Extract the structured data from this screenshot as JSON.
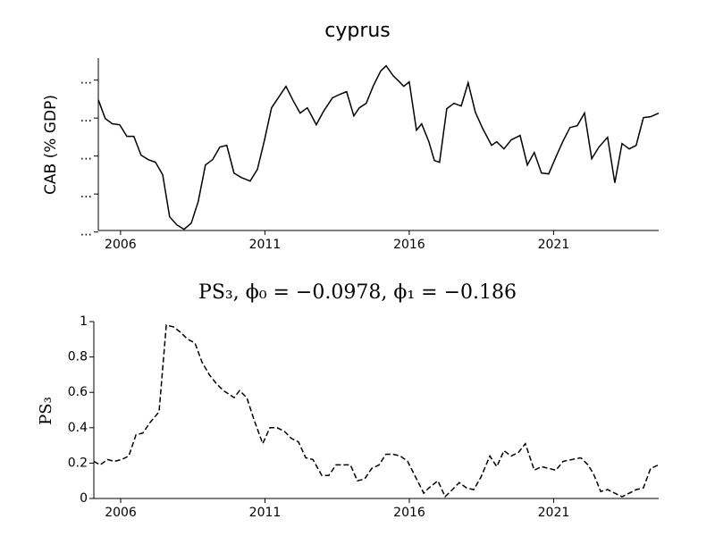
{
  "chart_data": [
    {
      "type": "line",
      "title": "cyprus",
      "ylabel": "CAB (% GDP)",
      "color": "#000000",
      "line_style": "solid",
      "xlim": [
        2005.23,
        2024.64
      ],
      "xticks": [
        2006,
        2011,
        2016,
        2021
      ],
      "ylim": [
        -19.8,
        2.9
      ],
      "yticks": [
        {
          "value": -20,
          "label": "..."
        },
        {
          "value": -15,
          "label": "..."
        },
        {
          "value": -10,
          "label": "..."
        },
        {
          "value": -5,
          "label": "..."
        },
        {
          "value": 0,
          "label": "..."
        }
      ],
      "x": [
        2005.23,
        2005.47,
        2005.72,
        2005.97,
        2006.22,
        2006.46,
        2006.71,
        2006.96,
        2007.21,
        2007.46,
        2007.7,
        2007.95,
        2008.2,
        2008.45,
        2008.69,
        2008.94,
        2009.19,
        2009.44,
        2009.68,
        2009.93,
        2010.18,
        2010.49,
        2010.74,
        2010.98,
        2011.23,
        2011.48,
        2011.73,
        2011.98,
        2012.22,
        2012.47,
        2012.78,
        2013.03,
        2013.34,
        2013.59,
        2013.83,
        2014.08,
        2014.27,
        2014.51,
        2014.76,
        2015.01,
        2015.2,
        2015.44,
        2015.63,
        2015.81,
        2016.0,
        2016.25,
        2016.43,
        2016.68,
        2016.87,
        2017.05,
        2017.3,
        2017.55,
        2017.8,
        2018.04,
        2018.29,
        2018.54,
        2018.85,
        2019.03,
        2019.28,
        2019.53,
        2019.84,
        2020.09,
        2020.33,
        2020.58,
        2020.83,
        2021.08,
        2021.33,
        2021.57,
        2021.82,
        2022.07,
        2022.32,
        2022.57,
        2022.87,
        2023.12,
        2023.37,
        2023.62,
        2023.86,
        2024.11,
        2024.36,
        2024.64
      ],
      "values": [
        -2.59,
        -5.06,
        -5.76,
        -5.88,
        -7.41,
        -7.41,
        -9.88,
        -10.47,
        -10.82,
        -12.47,
        -18.0,
        -19.06,
        -19.65,
        -18.82,
        -16.0,
        -11.18,
        -10.47,
        -8.82,
        -8.59,
        -12.24,
        -12.82,
        -13.29,
        -11.76,
        -8.0,
        -3.65,
        -2.24,
        -0.82,
        -2.71,
        -4.35,
        -3.65,
        -5.88,
        -4.12,
        -2.35,
        -1.88,
        -1.53,
        -4.71,
        -3.65,
        -3.06,
        -0.71,
        1.18,
        1.88,
        0.59,
        -0.12,
        -0.82,
        -0.24,
        -6.59,
        -5.76,
        -8.12,
        -10.59,
        -10.82,
        -3.76,
        -3.06,
        -3.41,
        -0.35,
        -4.24,
        -6.35,
        -8.59,
        -8.12,
        -9.06,
        -7.88,
        -7.29,
        -11.18,
        -9.53,
        -12.24,
        -12.35,
        -10.12,
        -8.0,
        -6.24,
        -6.0,
        -4.35,
        -10.35,
        -8.82,
        -7.53,
        -13.53,
        -8.35,
        -9.06,
        -8.59,
        -4.94,
        -4.82,
        -4.35
      ]
    },
    {
      "type": "line",
      "title": "PS₃, ϕ₀ = −0.0978, ϕ₁ = −0.186",
      "ylabel": "PS₃",
      "color": "#000000",
      "line_style": "dashed",
      "xlim": [
        2005.07,
        2024.64
      ],
      "xticks": [
        2006,
        2011,
        2016,
        2021
      ],
      "ylim": [
        0,
        1
      ],
      "yticks": [
        0,
        0.2,
        0.4,
        0.6,
        0.8,
        1
      ],
      "x": [
        2005.07,
        2005.29,
        2005.54,
        2005.78,
        2006.03,
        2006.28,
        2006.53,
        2006.77,
        2007.02,
        2007.33,
        2007.58,
        2007.83,
        2008.07,
        2008.32,
        2008.57,
        2008.82,
        2009.07,
        2009.31,
        2009.56,
        2009.93,
        2010.12,
        2010.37,
        2010.61,
        2010.92,
        2011.17,
        2011.42,
        2011.67,
        2011.91,
        2012.16,
        2012.41,
        2012.66,
        2012.97,
        2013.21,
        2013.46,
        2013.71,
        2013.96,
        2014.2,
        2014.45,
        2014.7,
        2014.95,
        2015.19,
        2015.44,
        2015.69,
        2015.94,
        2016.19,
        2016.5,
        2016.68,
        2016.99,
        2017.24,
        2017.49,
        2017.73,
        2017.98,
        2018.23,
        2018.48,
        2018.79,
        2019.03,
        2019.28,
        2019.53,
        2019.78,
        2020.02,
        2020.33,
        2020.58,
        2020.83,
        2021.08,
        2021.33,
        2021.63,
        2021.94,
        2022.19,
        2022.38,
        2022.63,
        2022.87,
        2023.12,
        2023.37,
        2023.62,
        2023.86,
        2024.11,
        2024.36,
        2024.64
      ],
      "values": [
        0.21,
        0.19,
        0.22,
        0.21,
        0.22,
        0.24,
        0.36,
        0.37,
        0.43,
        0.49,
        0.98,
        0.97,
        0.94,
        0.9,
        0.88,
        0.77,
        0.7,
        0.65,
        0.61,
        0.57,
        0.61,
        0.57,
        0.45,
        0.31,
        0.4,
        0.4,
        0.38,
        0.34,
        0.32,
        0.23,
        0.22,
        0.13,
        0.13,
        0.19,
        0.19,
        0.19,
        0.1,
        0.11,
        0.17,
        0.19,
        0.25,
        0.25,
        0.24,
        0.21,
        0.13,
        0.03,
        0.06,
        0.1,
        0.01,
        0.05,
        0.09,
        0.06,
        0.05,
        0.12,
        0.24,
        0.18,
        0.27,
        0.24,
        0.26,
        0.31,
        0.16,
        0.18,
        0.17,
        0.16,
        0.21,
        0.22,
        0.23,
        0.19,
        0.14,
        0.04,
        0.05,
        0.03,
        0.01,
        0.03,
        0.05,
        0.06,
        0.17,
        0.19
      ]
    }
  ]
}
